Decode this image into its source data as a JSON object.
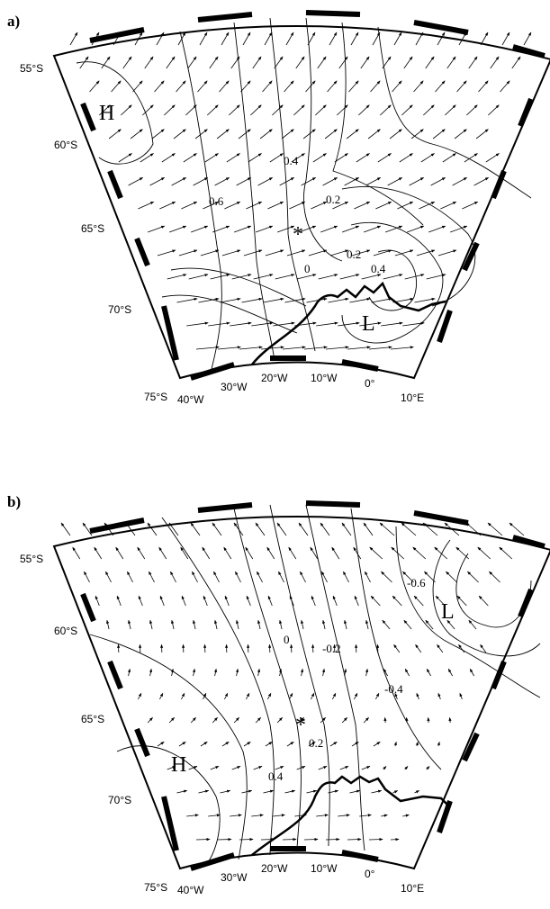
{
  "panels": [
    {
      "id": "a",
      "label": "a)",
      "lat_labels": [
        "55°S",
        "60°S",
        "65°S",
        "70°S",
        "75°S"
      ],
      "lon_labels": [
        "40°W",
        "30°W",
        "20°W",
        "10°W",
        "0°",
        "10°E"
      ],
      "contour_labels": [
        "0.4",
        "0.6",
        "0.2",
        "0",
        "0.2",
        "0.4"
      ],
      "pressure_labels": [
        "H",
        "L"
      ],
      "marker": "*"
    },
    {
      "id": "b",
      "label": "b)",
      "lat_labels": [
        "55°S",
        "60°S",
        "65°S",
        "70°S",
        "75°S"
      ],
      "lon_labels": [
        "40°W",
        "30°W",
        "20°W",
        "10°W",
        "0°",
        "10°E"
      ],
      "contour_labels": [
        "0",
        "-0.2",
        "-0.4",
        "-0.6",
        "0.2",
        "0.4"
      ],
      "pressure_labels": [
        "L",
        "H"
      ],
      "marker": "*"
    }
  ]
}
